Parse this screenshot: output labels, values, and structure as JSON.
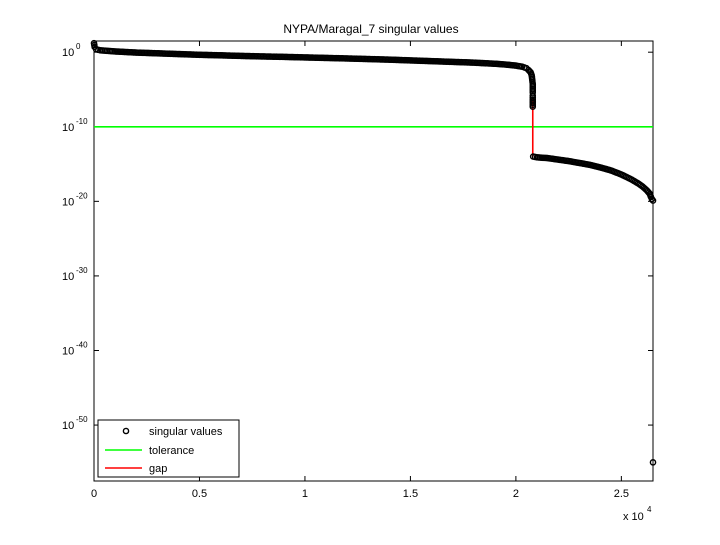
{
  "chart_data": {
    "type": "scatter",
    "title": "NYPA/Maragal_7 singular values",
    "xlabel": "",
    "ylabel": "",
    "x_exponent_label": "x 10",
    "x_exponent_power": "4",
    "xlim": [
      0,
      2.65
    ],
    "ylim_log10": [
      -57.5,
      1.5
    ],
    "y_scale": "log",
    "grid": false,
    "legend_position": "bottom-left",
    "x_ticks": [
      {
        "value": 0,
        "label": "0"
      },
      {
        "value": 0.5,
        "label": "0.5"
      },
      {
        "value": 1,
        "label": "1"
      },
      {
        "value": 1.5,
        "label": "1.5"
      },
      {
        "value": 2,
        "label": "2"
      },
      {
        "value": 2.5,
        "label": "2.5"
      }
    ],
    "y_ticks": [
      {
        "log10": 0,
        "base": "10",
        "exp": "0"
      },
      {
        "log10": -10,
        "base": "10",
        "exp": "-10"
      },
      {
        "log10": -20,
        "base": "10",
        "exp": "-20"
      },
      {
        "log10": -30,
        "base": "10",
        "exp": "-30"
      },
      {
        "log10": -40,
        "base": "10",
        "exp": "-40"
      },
      {
        "log10": -50,
        "base": "10",
        "exp": "-50"
      }
    ],
    "series": [
      {
        "name": "singular values",
        "style": "markers",
        "color": "#000000",
        "points_log10": [
          [
            0.0,
            1.2
          ],
          [
            0.003,
            0.7
          ],
          [
            0.01,
            0.4
          ],
          [
            0.03,
            0.25
          ],
          [
            0.1,
            0.1
          ],
          [
            0.2,
            -0.05
          ],
          [
            0.3,
            -0.15
          ],
          [
            0.4,
            -0.25
          ],
          [
            0.5,
            -0.35
          ],
          [
            0.6,
            -0.42
          ],
          [
            0.7,
            -0.5
          ],
          [
            0.8,
            -0.57
          ],
          [
            0.9,
            -0.63
          ],
          [
            1.0,
            -0.7
          ],
          [
            1.1,
            -0.77
          ],
          [
            1.2,
            -0.84
          ],
          [
            1.3,
            -0.92
          ],
          [
            1.4,
            -1.0
          ],
          [
            1.5,
            -1.1
          ],
          [
            1.6,
            -1.2
          ],
          [
            1.7,
            -1.3
          ],
          [
            1.8,
            -1.4
          ],
          [
            1.9,
            -1.55
          ],
          [
            1.95,
            -1.65
          ],
          [
            2.0,
            -1.8
          ],
          [
            2.03,
            -1.95
          ],
          [
            2.05,
            -2.15
          ],
          [
            2.06,
            -2.4
          ],
          [
            2.07,
            -2.7
          ],
          [
            2.075,
            -3.1
          ],
          [
            2.078,
            -3.8
          ],
          [
            2.08,
            -4.3
          ],
          [
            2.08,
            -5.4
          ],
          [
            2.08,
            -5.8
          ],
          [
            2.08,
            -6.1
          ],
          [
            2.08,
            -7.3
          ],
          [
            2.082,
            -14.0
          ],
          [
            2.1,
            -14.1
          ],
          [
            2.15,
            -14.2
          ],
          [
            2.2,
            -14.4
          ],
          [
            2.25,
            -14.6
          ],
          [
            2.3,
            -14.85
          ],
          [
            2.35,
            -15.1
          ],
          [
            2.4,
            -15.45
          ],
          [
            2.45,
            -15.85
          ],
          [
            2.5,
            -16.4
          ],
          [
            2.55,
            -17.1
          ],
          [
            2.58,
            -17.6
          ],
          [
            2.6,
            -18.0
          ],
          [
            2.62,
            -18.5
          ],
          [
            2.635,
            -19.0
          ],
          [
            2.64,
            -19.4
          ],
          [
            2.645,
            -19.7
          ],
          [
            2.65,
            -19.9
          ],
          [
            2.65,
            -55.0
          ]
        ]
      },
      {
        "name": "tolerance",
        "style": "line",
        "color": "#00ff00",
        "value_log10": -10
      },
      {
        "name": "gap",
        "style": "line",
        "color": "#ff0000",
        "x": 2.08,
        "from_log10": -6.1,
        "to_log10": -14.0
      }
    ]
  }
}
